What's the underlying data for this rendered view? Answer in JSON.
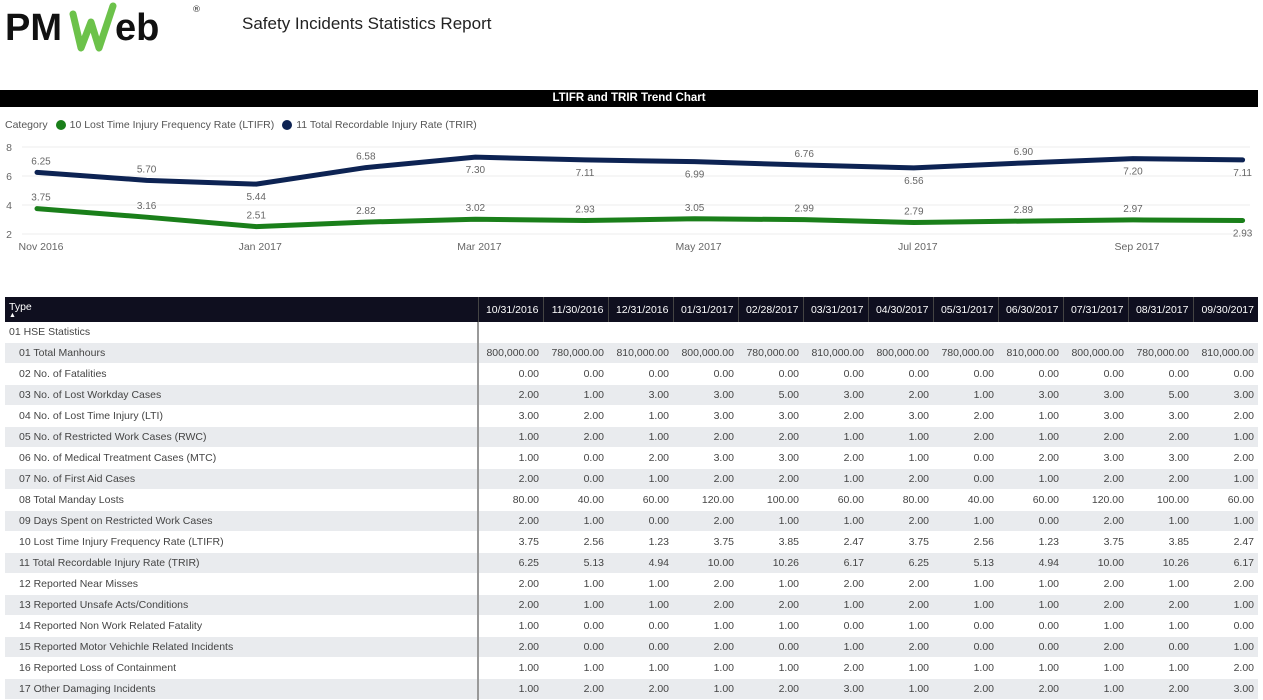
{
  "header": {
    "logo_text": "PMWeb",
    "title": "Safety Incidents Statistics Report"
  },
  "chart_title": "LTIFR and TRIR Trend Chart",
  "legend": {
    "label": "Category",
    "items": [
      {
        "name": "10 Lost Time Injury Frequency Rate (LTIFR)",
        "color": "#1a7f1a"
      },
      {
        "name": "11 Total Recordable Injury Rate (TRIR)",
        "color": "#0d2353"
      }
    ]
  },
  "chart_data": {
    "type": "line",
    "x": [
      "Nov 2016",
      "Dec 2016",
      "Jan 2017",
      "Feb 2017",
      "Mar 2017",
      "Apr 2017",
      "May 2017",
      "Jun 2017",
      "Jul 2017",
      "Aug 2017",
      "Sep 2017",
      "Oct 2017"
    ],
    "x_tick_labels": [
      "Nov 2016",
      "Jan 2017",
      "Mar 2017",
      "May 2017",
      "Jul 2017",
      "Sep 2017"
    ],
    "y_ticks": [
      2,
      4,
      6,
      8
    ],
    "ylim": [
      2,
      8
    ],
    "grid": true,
    "legend_position": "top-left",
    "series": [
      {
        "name": "10 Lost Time Injury Frequency Rate (LTIFR)",
        "color": "#1a7f1a",
        "values": [
          3.75,
          3.16,
          2.51,
          2.82,
          3.02,
          2.93,
          3.05,
          2.99,
          2.79,
          2.89,
          2.97,
          2.93
        ]
      },
      {
        "name": "11 Total Recordable Injury Rate (TRIR)",
        "color": "#0d2353",
        "values": [
          6.25,
          5.7,
          5.44,
          6.58,
          7.3,
          7.11,
          6.99,
          6.76,
          6.56,
          6.9,
          7.2,
          7.11
        ]
      }
    ]
  },
  "table": {
    "type_header": "Type",
    "columns": [
      "10/31/2016",
      "11/30/2016",
      "12/31/2016",
      "01/31/2017",
      "02/28/2017",
      "03/31/2017",
      "04/30/2017",
      "05/31/2017",
      "06/30/2017",
      "07/31/2017",
      "08/31/2017",
      "09/30/2017"
    ],
    "group": "01 HSE Statistics",
    "rows": [
      {
        "label": "01 Total Manhours",
        "values": [
          "800,000.00",
          "780,000.00",
          "810,000.00",
          "800,000.00",
          "780,000.00",
          "810,000.00",
          "800,000.00",
          "780,000.00",
          "810,000.00",
          "800,000.00",
          "780,000.00",
          "810,000.00"
        ]
      },
      {
        "label": "02 No. of Fatalities",
        "values": [
          "0.00",
          "0.00",
          "0.00",
          "0.00",
          "0.00",
          "0.00",
          "0.00",
          "0.00",
          "0.00",
          "0.00",
          "0.00",
          "0.00"
        ]
      },
      {
        "label": "03 No. of Lost Workday Cases",
        "values": [
          "2.00",
          "1.00",
          "3.00",
          "3.00",
          "5.00",
          "3.00",
          "2.00",
          "1.00",
          "3.00",
          "3.00",
          "5.00",
          "3.00"
        ]
      },
      {
        "label": "04 No. of Lost Time Injury (LTI)",
        "values": [
          "3.00",
          "2.00",
          "1.00",
          "3.00",
          "3.00",
          "2.00",
          "3.00",
          "2.00",
          "1.00",
          "3.00",
          "3.00",
          "2.00"
        ]
      },
      {
        "label": "05 No. of Restricted Work Cases (RWC)",
        "values": [
          "1.00",
          "2.00",
          "1.00",
          "2.00",
          "2.00",
          "1.00",
          "1.00",
          "2.00",
          "1.00",
          "2.00",
          "2.00",
          "1.00"
        ]
      },
      {
        "label": "06 No. of Medical Treatment Cases (MTC)",
        "values": [
          "1.00",
          "0.00",
          "2.00",
          "3.00",
          "3.00",
          "2.00",
          "1.00",
          "0.00",
          "2.00",
          "3.00",
          "3.00",
          "2.00"
        ]
      },
      {
        "label": "07 No. of First Aid Cases",
        "values": [
          "2.00",
          "0.00",
          "1.00",
          "2.00",
          "2.00",
          "1.00",
          "2.00",
          "0.00",
          "1.00",
          "2.00",
          "2.00",
          "1.00"
        ]
      },
      {
        "label": "08 Total Manday Losts",
        "values": [
          "80.00",
          "40.00",
          "60.00",
          "120.00",
          "100.00",
          "60.00",
          "80.00",
          "40.00",
          "60.00",
          "120.00",
          "100.00",
          "60.00"
        ]
      },
      {
        "label": "09 Days Spent on Restricted Work Cases",
        "values": [
          "2.00",
          "1.00",
          "0.00",
          "2.00",
          "1.00",
          "1.00",
          "2.00",
          "1.00",
          "0.00",
          "2.00",
          "1.00",
          "1.00"
        ]
      },
      {
        "label": "10 Lost Time Injury Frequency Rate (LTIFR)",
        "values": [
          "3.75",
          "2.56",
          "1.23",
          "3.75",
          "3.85",
          "2.47",
          "3.75",
          "2.56",
          "1.23",
          "3.75",
          "3.85",
          "2.47"
        ]
      },
      {
        "label": "11 Total Recordable Injury Rate (TRIR)",
        "values": [
          "6.25",
          "5.13",
          "4.94",
          "10.00",
          "10.26",
          "6.17",
          "6.25",
          "5.13",
          "4.94",
          "10.00",
          "10.26",
          "6.17"
        ]
      },
      {
        "label": "12 Reported Near Misses",
        "values": [
          "2.00",
          "1.00",
          "1.00",
          "2.00",
          "1.00",
          "2.00",
          "2.00",
          "1.00",
          "1.00",
          "2.00",
          "1.00",
          "2.00"
        ]
      },
      {
        "label": "13 Reported Unsafe Acts/Conditions",
        "values": [
          "2.00",
          "1.00",
          "1.00",
          "2.00",
          "2.00",
          "1.00",
          "2.00",
          "1.00",
          "1.00",
          "2.00",
          "2.00",
          "1.00"
        ]
      },
      {
        "label": "14 Reported Non Work Related Fatality",
        "values": [
          "1.00",
          "0.00",
          "0.00",
          "1.00",
          "1.00",
          "0.00",
          "1.00",
          "0.00",
          "0.00",
          "1.00",
          "1.00",
          "0.00"
        ]
      },
      {
        "label": "15 Reported Motor Vehichle Related Incidents",
        "values": [
          "2.00",
          "0.00",
          "0.00",
          "2.00",
          "0.00",
          "1.00",
          "2.00",
          "0.00",
          "0.00",
          "2.00",
          "0.00",
          "1.00"
        ]
      },
      {
        "label": "16 Reported Loss of Containment",
        "values": [
          "1.00",
          "1.00",
          "1.00",
          "1.00",
          "1.00",
          "2.00",
          "1.00",
          "1.00",
          "1.00",
          "1.00",
          "1.00",
          "2.00"
        ]
      },
      {
        "label": "17 Other Damaging Incidents",
        "values": [
          "1.00",
          "2.00",
          "2.00",
          "1.00",
          "2.00",
          "3.00",
          "1.00",
          "2.00",
          "2.00",
          "1.00",
          "2.00",
          "3.00"
        ]
      }
    ]
  }
}
